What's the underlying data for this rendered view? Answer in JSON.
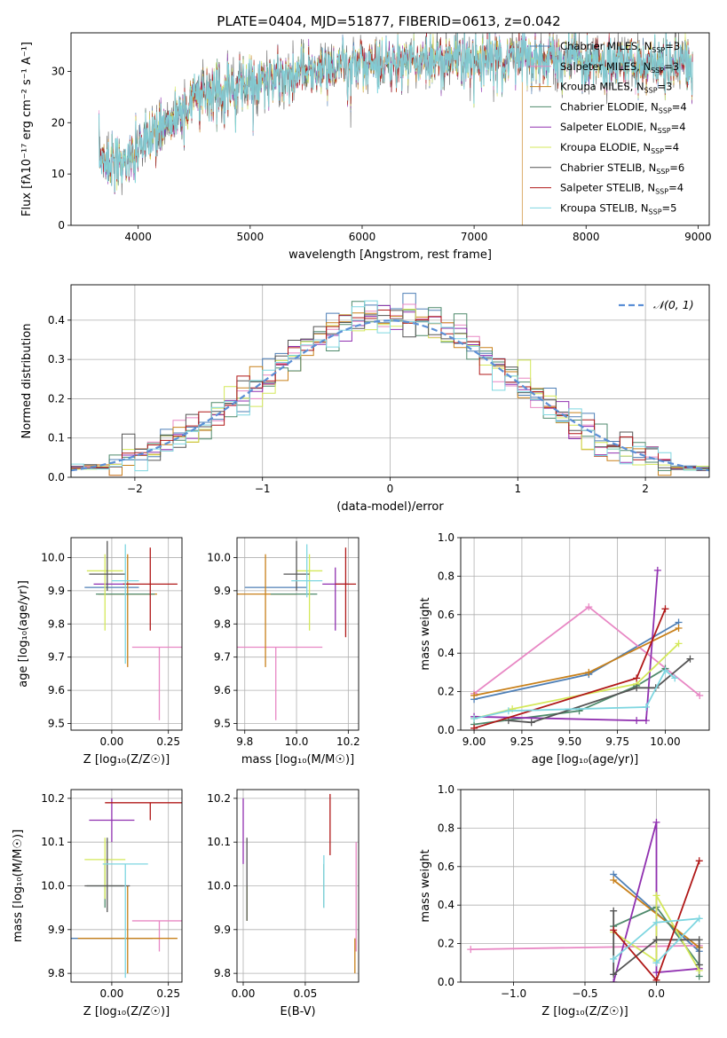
{
  "figure": {
    "title": "PLATE=0404, MJD=51877, FIBERID=0613, z=0.042",
    "colors": [
      "#4e7fb6",
      "#e887c4",
      "#c8801a",
      "#4f8a6c",
      "#9030b0",
      "#d4e85a",
      "#555555",
      "#b01818",
      "#7ed6e0"
    ],
    "series_names": [
      "Chabrier MILES, N_SSP=3",
      "Salpeter MILES, N_SSP=3",
      "Kroupa MILES, N_SSP=3",
      "Chabrier ELODIE, N_SSP=4",
      "Salpeter ELODIE, N_SSP=4",
      "Kroupa ELODIE, N_SSP=4",
      "Chabrier STELIB, N_SSP=6",
      "Salpeter STELIB, N_SSP=4",
      "Kroupa STELIB, N_SSP=5"
    ]
  },
  "chart_data": [
    {
      "id": "spectrum",
      "type": "line",
      "xlabel": "wavelength [Angstrom, rest frame]",
      "ylabel": "Flux [fλ10⁻¹⁷ erg cm⁻² s⁻¹ A⁻¹]",
      "xlim": [
        3400,
        9100
      ],
      "ylim": [
        0,
        37.5
      ],
      "xticks": [
        4000,
        5000,
        6000,
        7000,
        8000,
        9000
      ],
      "yticks": [
        0,
        10,
        20,
        30
      ],
      "grid": false,
      "legend": "top-right",
      "continuum_x": [
        3650,
        3900,
        4100,
        4300,
        4600,
        5000,
        5500,
        6000,
        6500,
        7000,
        7500,
        8000,
        8500,
        8950
      ],
      "continuum_y": [
        13,
        12,
        17,
        21,
        26,
        28,
        30,
        31.5,
        32,
        32.5,
        32.5,
        32,
        31.5,
        31.5
      ],
      "drops": [
        {
          "series": 5,
          "x": 3900
        },
        {
          "series": 5,
          "x": 6800
        },
        {
          "series": 2,
          "x": 7430
        }
      ]
    },
    {
      "id": "residuals",
      "type": "histogram",
      "xlabel": "(data-model)/error",
      "ylabel": "Normed distribution",
      "xlim": [
        -2.5,
        2.5
      ],
      "ylim": [
        0,
        0.49
      ],
      "xticks": [
        -2,
        -1,
        0,
        1,
        2
      ],
      "yticks": [
        0,
        0.1,
        0.2,
        0.3,
        0.4
      ],
      "grid": true,
      "legend": "top-right",
      "reference_curve": "𝒩(0, 1)",
      "bin_width": 0.1
    },
    {
      "id": "age-vs-Z",
      "type": "errorbar",
      "xlabel": "Z [log₁₀(Z/Z☉)]",
      "ylabel": "age  [log₁₀(age/yr)]",
      "xlim": [
        -0.18,
        0.31
      ],
      "ylim": [
        9.48,
        10.06
      ],
      "xticks": [
        0,
        0.25
      ],
      "xtick_labels": [
        "0.00",
        "0.25"
      ],
      "yticks": [
        9.5,
        9.6,
        9.7,
        9.8,
        9.9,
        10.0
      ],
      "grid": true,
      "points": [
        {
          "s": 0,
          "x": 0.0,
          "y": 9.91,
          "xe": 0.12,
          "ye": [
            0.0,
            0.0
          ]
        },
        {
          "s": 1,
          "x": 0.21,
          "y": 9.73,
          "xe": 0.12,
          "ye": [
            0.22,
            0.0
          ]
        },
        {
          "s": 2,
          "x": 0.07,
          "y": 9.89,
          "xe": 0.13,
          "ye": [
            0.22,
            0.12
          ]
        },
        {
          "s": 3,
          "x": 0.06,
          "y": 9.89,
          "xe": 0.13,
          "ye": [
            0.0,
            0.0
          ]
        },
        {
          "s": 4,
          "x": 0.0,
          "y": 9.92,
          "xe": 0.08,
          "ye": [
            0.0,
            0.0
          ]
        },
        {
          "s": 5,
          "x": -0.03,
          "y": 9.96,
          "xe": 0.08,
          "ye": [
            0.18,
            0.05
          ]
        },
        {
          "s": 6,
          "x": -0.02,
          "y": 9.95,
          "xe": 0.08,
          "ye": [
            0.05,
            0.1
          ]
        },
        {
          "s": 7,
          "x": 0.17,
          "y": 9.92,
          "xe": 0.12,
          "ye": [
            0.14,
            0.11
          ]
        },
        {
          "s": 8,
          "x": 0.06,
          "y": 9.93,
          "xe": 0.06,
          "ye": [
            0.25,
            0.11
          ]
        }
      ]
    },
    {
      "id": "age-vs-mass",
      "type": "errorbar",
      "xlabel": "mass [log₁₀(M/M☉)]",
      "ylabel": "",
      "xlim": [
        9.77,
        10.24
      ],
      "ylim": [
        9.48,
        10.06
      ],
      "xticks": [
        9.8,
        10.0,
        10.2
      ],
      "xtick_labels": [
        "9.8",
        "10.0",
        "10.2"
      ],
      "yticks": [
        9.5,
        9.6,
        9.7,
        9.8,
        9.9,
        10.0
      ],
      "grid": true,
      "points": [
        {
          "s": 0,
          "x": 9.92,
          "y": 9.91,
          "xe": 0.12,
          "ye": [
            0.0,
            0.0
          ]
        },
        {
          "s": 1,
          "x": 9.92,
          "y": 9.73,
          "xe": 0.18,
          "ye": [
            0.22,
            0.0
          ]
        },
        {
          "s": 2,
          "x": 9.88,
          "y": 9.89,
          "xe": 0.12,
          "ye": [
            0.22,
            0.12
          ]
        },
        {
          "s": 3,
          "x": 9.99,
          "y": 9.89,
          "xe": 0.09,
          "ye": [
            0.0,
            0.0
          ]
        },
        {
          "s": 4,
          "x": 10.15,
          "y": 9.92,
          "xe": 0.05,
          "ye": [
            0.14,
            0.05
          ]
        },
        {
          "s": 5,
          "x": 10.05,
          "y": 9.96,
          "xe": 0.05,
          "ye": [
            0.18,
            0.05
          ]
        },
        {
          "s": 6,
          "x": 10.0,
          "y": 9.95,
          "xe": 0.05,
          "ye": [
            0.05,
            0.1
          ]
        },
        {
          "s": 7,
          "x": 10.19,
          "y": 9.92,
          "xe": 0.04,
          "ye": [
            0.16,
            0.11
          ]
        },
        {
          "s": 8,
          "x": 10.04,
          "y": 9.93,
          "xe": 0.06,
          "ye": [
            0.05,
            0.11
          ]
        }
      ]
    },
    {
      "id": "weight-vs-age",
      "type": "line",
      "xlabel": "age  [log₁₀(age/yr)]",
      "ylabel": "mass weight",
      "xlim": [
        8.93,
        10.23
      ],
      "ylim": [
        0,
        1
      ],
      "xticks": [
        9.0,
        9.25,
        9.5,
        9.75,
        10.0
      ],
      "xtick_labels": [
        "9.00",
        "9.25",
        "9.50",
        "9.75",
        "10.00"
      ],
      "yticks": [
        0,
        0.2,
        0.4,
        0.6,
        0.8,
        1.0
      ],
      "grid": true,
      "series": [
        {
          "s": 0,
          "x": [
            9.0,
            9.6,
            10.07
          ],
          "y": [
            0.16,
            0.29,
            0.56
          ]
        },
        {
          "s": 1,
          "x": [
            9.0,
            9.6,
            10.18
          ],
          "y": [
            0.19,
            0.64,
            0.18
          ]
        },
        {
          "s": 2,
          "x": [
            9.0,
            9.6,
            10.07
          ],
          "y": [
            0.18,
            0.3,
            0.53
          ]
        },
        {
          "s": 3,
          "x": [
            9.0,
            9.55,
            9.85,
            10.0
          ],
          "y": [
            0.03,
            0.1,
            0.23,
            0.32
          ]
        },
        {
          "s": 4,
          "x": [
            9.0,
            9.85,
            9.9,
            9.96
          ],
          "y": [
            0.07,
            0.05,
            0.05,
            0.83
          ]
        },
        {
          "s": 5,
          "x": [
            9.0,
            9.2,
            9.85,
            10.07
          ],
          "y": [
            0.06,
            0.11,
            0.24,
            0.45
          ]
        },
        {
          "s": 6,
          "x": [
            9.18,
            9.3,
            9.85,
            9.95,
            10.13
          ],
          "y": [
            0.05,
            0.04,
            0.22,
            0.22,
            0.37
          ]
        },
        {
          "s": 7,
          "x": [
            9.0,
            9.85,
            10.0
          ],
          "y": [
            0.01,
            0.27,
            0.63
          ]
        },
        {
          "s": 8,
          "x": [
            9.0,
            9.18,
            9.9,
            10.0,
            10.05
          ],
          "y": [
            0.06,
            0.1,
            0.12,
            0.31,
            0.27
          ]
        }
      ]
    },
    {
      "id": "mass-vs-Z",
      "type": "errorbar",
      "xlabel": "Z [log₁₀(Z/Z☉)]",
      "ylabel": "mass [log₁₀(M/M☉)]",
      "xlim": [
        -0.18,
        0.31
      ],
      "ylim": [
        9.78,
        10.22
      ],
      "xticks": [
        0,
        0.25
      ],
      "xtick_labels": [
        "0.00",
        "0.25"
      ],
      "yticks": [
        9.8,
        9.9,
        10.0,
        10.1,
        10.2
      ],
      "grid": true,
      "points": [
        {
          "s": 0,
          "x": 0.0,
          "y": 9.88,
          "xe": 0.18,
          "ye": [
            0.0,
            0.0
          ]
        },
        {
          "s": 1,
          "x": 0.21,
          "y": 9.92,
          "xe": 0.12,
          "ye": [
            0.07,
            0.0
          ]
        },
        {
          "s": 2,
          "x": 0.07,
          "y": 9.88,
          "xe": 0.22,
          "ye": [
            0.08,
            0.12
          ]
        },
        {
          "s": 3,
          "x": -0.03,
          "y": 10.0,
          "xe": 0.08,
          "ye": [
            0.05,
            0.05
          ]
        },
        {
          "s": 4,
          "x": 0.0,
          "y": 10.15,
          "xe": 0.1,
          "ye": [
            0.05,
            0.05
          ]
        },
        {
          "s": 5,
          "x": -0.03,
          "y": 10.06,
          "xe": 0.09,
          "ye": [
            0.09,
            0.05
          ]
        },
        {
          "s": 6,
          "x": -0.02,
          "y": 10.0,
          "xe": 0.1,
          "ye": [
            0.06,
            0.11
          ]
        },
        {
          "s": 7,
          "x": 0.17,
          "y": 10.19,
          "xe": 0.2,
          "ye": [
            0.04,
            0.0
          ]
        },
        {
          "s": 8,
          "x": 0.06,
          "y": 10.05,
          "xe": 0.1,
          "ye": [
            0.26,
            0.0
          ]
        }
      ]
    },
    {
      "id": "mass-vs-EBV",
      "type": "errorbar",
      "xlabel": "E(B-V)",
      "ylabel": "",
      "xlim": [
        -0.005,
        0.093
      ],
      "ylim": [
        9.78,
        10.22
      ],
      "xticks": [
        0,
        0.05
      ],
      "xtick_labels": [
        "0.00",
        "0.05"
      ],
      "yticks": [
        9.8,
        9.9,
        10.0,
        10.1,
        10.2
      ],
      "grid": true,
      "points": [
        {
          "s": 0,
          "x": 0.0,
          "y": 9.88,
          "xe": 0,
          "ye": [
            0.0,
            0.0
          ]
        },
        {
          "s": 1,
          "x": 0.091,
          "y": 9.92,
          "xe": 0,
          "ye": [
            0.07,
            0.18
          ]
        },
        {
          "s": 2,
          "x": 0.09,
          "y": 9.88,
          "xe": 0,
          "ye": [
            0.08,
            0.0
          ]
        },
        {
          "s": 3,
          "x": 0.065,
          "y": 10.0,
          "xe": 0,
          "ye": [
            0.05,
            0.05
          ]
        },
        {
          "s": 4,
          "x": 0.0,
          "y": 10.13,
          "xe": 0,
          "ye": [
            0.08,
            0.07
          ]
        },
        {
          "s": 5,
          "x": 0.003,
          "y": 10.0,
          "xe": 0,
          "ye": [
            0.08,
            0.0
          ]
        },
        {
          "s": 6,
          "x": 0.003,
          "y": 10.02,
          "xe": 0,
          "ye": [
            0.1,
            0.09
          ]
        },
        {
          "s": 7,
          "x": 0.07,
          "y": 10.14,
          "xe": 0,
          "ye": [
            0.07,
            0.07
          ]
        },
        {
          "s": 8,
          "x": 0.065,
          "y": 10.02,
          "xe": 0,
          "ye": [
            0.07,
            0.05
          ]
        }
      ]
    },
    {
      "id": "weight-vs-Z",
      "type": "line",
      "xlabel": "Z [log₁₀(Z/Z☉)]",
      "ylabel": "mass weight",
      "xlim": [
        -1.37,
        0.37
      ],
      "ylim": [
        0,
        1
      ],
      "xticks": [
        -1.0,
        -0.5,
        0.0
      ],
      "xtick_labels": [
        "−1.0",
        "−0.5",
        "0.0"
      ],
      "yticks": [
        0,
        0.2,
        0.4,
        0.6,
        0.8,
        1.0
      ],
      "grid": true,
      "series": [
        {
          "s": 0,
          "x": [
            -0.3,
            0.3
          ],
          "y": [
            0.56,
            0.16
          ]
        },
        {
          "s": 1,
          "x": [
            -1.3,
            0.3
          ],
          "y": [
            0.17,
            0.19
          ]
        },
        {
          "s": 2,
          "x": [
            -0.3,
            0.3
          ],
          "y": [
            0.53,
            0.18
          ]
        },
        {
          "s": 3,
          "x": [
            -0.3,
            0.0,
            0.3,
            0.3
          ],
          "y": [
            0.29,
            0.39,
            0.09,
            0.03
          ]
        },
        {
          "s": 4,
          "x": [
            -0.3,
            0.0,
            0.0,
            0.3
          ],
          "y": [
            0.0,
            0.83,
            0.05,
            0.07
          ]
        },
        {
          "s": 5,
          "x": [
            -0.3,
            0.0,
            0.0,
            0.3
          ],
          "y": [
            0.26,
            0.11,
            0.45,
            0.06
          ]
        },
        {
          "s": 6,
          "x": [
            -0.3,
            -0.3,
            0.0,
            0.3,
            0.3
          ],
          "y": [
            0.37,
            0.04,
            0.22,
            0.22,
            0.09
          ]
        },
        {
          "s": 7,
          "x": [
            -0.3,
            0.0,
            0.3
          ],
          "y": [
            0.27,
            0.01,
            0.63
          ]
        },
        {
          "s": 8,
          "x": [
            -0.3,
            0.0,
            0.3,
            0.0
          ],
          "y": [
            0.12,
            0.31,
            0.33,
            0.1
          ]
        }
      ]
    }
  ]
}
